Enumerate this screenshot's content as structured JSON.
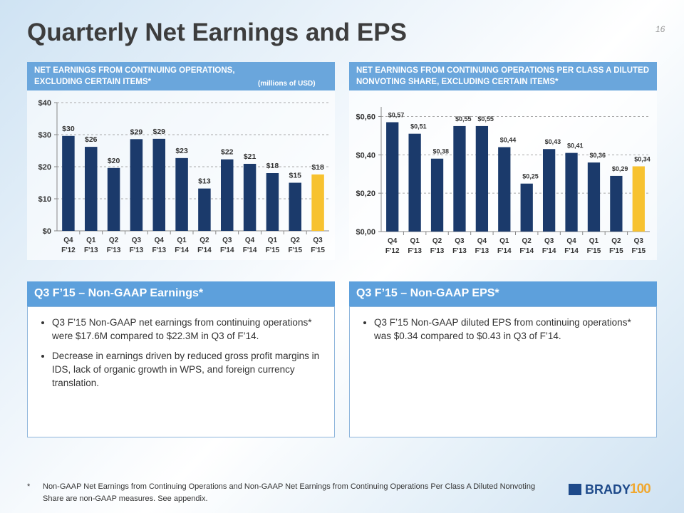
{
  "title": "Quarterly Net Earnings and EPS",
  "page_number": "16",
  "chart_data": [
    {
      "type": "bar",
      "title": "NET EARNINGS FROM CONTINUING OPERATIONS, EXCLUDING CERTAIN ITEMS*",
      "subtitle": "(millions of USD)",
      "categories": [
        "Q4 F'12",
        "Q1 F'13",
        "Q2 F'13",
        "Q3 F'13",
        "Q4 F'13",
        "Q1 F'14",
        "Q2 F'14",
        "Q3 F'14",
        "Q4 F'14",
        "Q1 F'15",
        "Q2 F'15",
        "Q3 F'15"
      ],
      "values": [
        29.6,
        26.2,
        19.6,
        28.6,
        28.7,
        22.7,
        13.2,
        22.3,
        20.9,
        18.0,
        15.0,
        17.6
      ],
      "value_labels": [
        "$30",
        "$26",
        "$20",
        "$29",
        "$29",
        "$23",
        "$13",
        "$22",
        "$21",
        "$18",
        "$15",
        "$18"
      ],
      "colors": [
        "#1b3a6b",
        "#1b3a6b",
        "#1b3a6b",
        "#1b3a6b",
        "#1b3a6b",
        "#1b3a6b",
        "#1b3a6b",
        "#1b3a6b",
        "#1b3a6b",
        "#1b3a6b",
        "#1b3a6b",
        "#f7c230"
      ],
      "ylim": [
        0,
        40
      ],
      "yticks": [
        {
          "value": 0,
          "label": "$0"
        },
        {
          "value": 10,
          "label": "$10"
        },
        {
          "value": 20,
          "label": "$20"
        },
        {
          "value": 30,
          "label": "$30"
        },
        {
          "value": 40,
          "label": "$40"
        }
      ],
      "grid": true
    },
    {
      "type": "bar",
      "title": "NET EARNINGS FROM CONTINUING OPERATIONS PER CLASS A DILUTED NONVOTING SHARE, EXCLUDING CERTAIN ITEMS*",
      "categories": [
        "Q4 F'12",
        "Q1 F'13",
        "Q2 F'13",
        "Q3 F'13",
        "Q4 F'13",
        "Q1 F'14",
        "Q2 F'14",
        "Q3 F'14",
        "Q4 F'14",
        "Q1 F'15",
        "Q2 F'15",
        "Q3 F'15"
      ],
      "values": [
        0.57,
        0.51,
        0.38,
        0.55,
        0.55,
        0.44,
        0.25,
        0.43,
        0.41,
        0.36,
        0.29,
        0.34
      ],
      "value_labels": [
        "$0,57",
        "$0,51",
        "$0,38",
        "$0,55",
        "$0,55",
        "$0,44",
        "$0,25",
        "$0,43",
        "$0,41",
        "$0,36",
        "$0,29",
        "$0,34"
      ],
      "colors": [
        "#1b3a6b",
        "#1b3a6b",
        "#1b3a6b",
        "#1b3a6b",
        "#1b3a6b",
        "#1b3a6b",
        "#1b3a6b",
        "#1b3a6b",
        "#1b3a6b",
        "#1b3a6b",
        "#1b3a6b",
        "#f7c230"
      ],
      "ylim": [
        0,
        0.65
      ],
      "yticks": [
        {
          "value": 0,
          "label": "$0,00"
        },
        {
          "value": 0.2,
          "label": "$0,20"
        },
        {
          "value": 0.4,
          "label": "$0,40"
        },
        {
          "value": 0.6,
          "label": "$0,60"
        }
      ],
      "grid": true
    }
  ],
  "boxes": [
    {
      "title": "Q3 F’15 – Non-GAAP Earnings*",
      "bullets": [
        "Q3 F’15 Non-GAAP net earnings from continuing operations* were $17.6M compared to $22.3M in Q3 of F’14.",
        "Decrease in earnings driven by reduced gross profit margins in IDS, lack of organic growth in WPS, and foreign currency translation."
      ]
    },
    {
      "title": "Q3 F’15 – Non-GAAP EPS*",
      "bullets": [
        "Q3 F’15 Non-GAAP diluted EPS from continuing operations* was $0.34 compared to $0.43 in Q3 of F’14."
      ]
    }
  ],
  "footnote": {
    "marker": "*",
    "text": "Non-GAAP Net Earnings from Continuing Operations and Non-GAAP Net Earnings from Continuing Operations Per Class A Diluted Nonvoting Share are non-GAAP measures.  See appendix."
  },
  "logo": {
    "name": "BRADY",
    "number": "100"
  }
}
